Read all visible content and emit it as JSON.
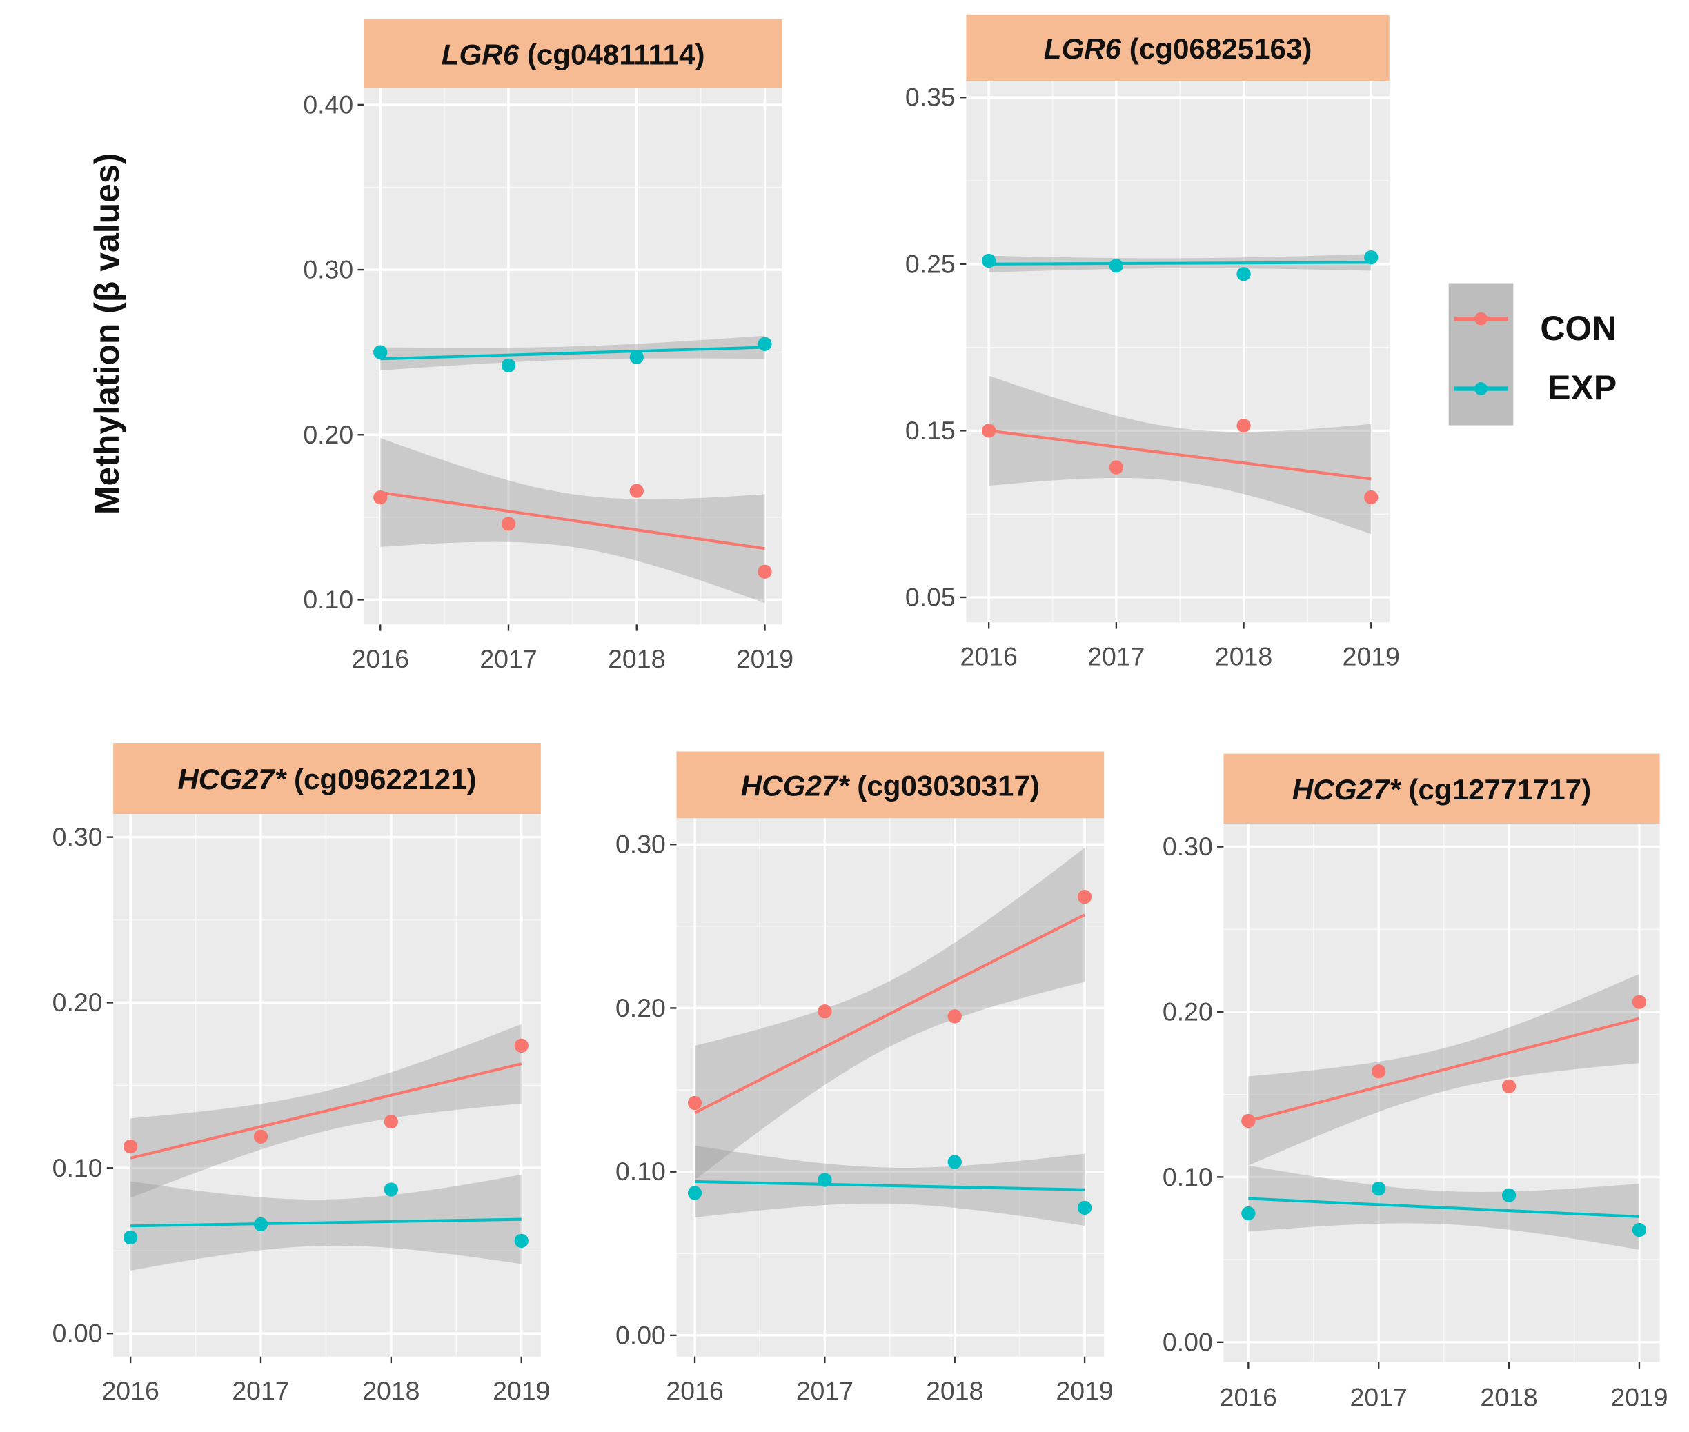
{
  "chart_data": {
    "type": "scatter",
    "ylabel": "Methylation (β values)",
    "legend": {
      "position": "right",
      "entries": [
        {
          "name": "CON",
          "color": "#F8766D"
        },
        {
          "name": "EXP",
          "color": "#00BFC4"
        }
      ]
    },
    "x_categories": [
      "2016",
      "2017",
      "2018",
      "2019"
    ],
    "x": [
      2016,
      2017,
      2018,
      2019
    ],
    "panels": [
      {
        "gene": "LGR6",
        "probe": " (cg04811114)",
        "ylim": [
          0.085,
          0.41
        ],
        "yticks": [
          0.1,
          0.2,
          0.3,
          0.4
        ],
        "ytick_labels": [
          "0.10",
          "0.20",
          "0.30",
          "0.40"
        ],
        "series": [
          {
            "name": "CON",
            "values": [
              0.162,
              0.146,
              0.166,
              0.117
            ],
            "fit": [
              0.165,
              0.131
            ],
            "ci_end": 0.033,
            "ci_center": 0.016
          },
          {
            "name": "EXP",
            "values": [
              0.25,
              0.242,
              0.247,
              0.255
            ],
            "fit": [
              0.246,
              0.253
            ],
            "ci_end": 0.007,
            "ci_center": 0.004
          }
        ]
      },
      {
        "gene": "LGR6",
        "probe": " (cg06825163)",
        "ylim": [
          0.035,
          0.36
        ],
        "yticks": [
          0.05,
          0.15,
          0.25,
          0.35
        ],
        "ytick_labels": [
          "0.05",
          "0.15",
          "0.25",
          "0.35"
        ],
        "series": [
          {
            "name": "CON",
            "values": [
              0.15,
              0.128,
              0.153,
              0.11
            ],
            "fit": [
              0.15,
              0.121
            ],
            "ci_end": 0.033,
            "ci_center": 0.016
          },
          {
            "name": "EXP",
            "values": [
              0.252,
              0.249,
              0.244,
              0.254
            ],
            "fit": [
              0.25,
              0.251
            ],
            "ci_end": 0.005,
            "ci_center": 0.003
          }
        ]
      },
      {
        "gene": "HCG27*",
        "probe": " (cg09622121)",
        "ylim": [
          -0.014,
          0.314
        ],
        "yticks": [
          0.0,
          0.1,
          0.2,
          0.3
        ],
        "ytick_labels": [
          "0.00",
          "0.10",
          "0.20",
          "0.30"
        ],
        "series": [
          {
            "name": "CON",
            "values": [
              0.113,
              0.119,
              0.128,
              0.174
            ],
            "fit": [
              0.106,
              0.163
            ],
            "ci_end": 0.024,
            "ci_center": 0.012
          },
          {
            "name": "EXP",
            "values": [
              0.058,
              0.066,
              0.087,
              0.056
            ],
            "fit": [
              0.065,
              0.069
            ],
            "ci_end": 0.027,
            "ci_center": 0.014
          }
        ]
      },
      {
        "gene": "HCG27*",
        "probe": " (cg03030317)",
        "ylim": [
          -0.013,
          0.316
        ],
        "yticks": [
          0.0,
          0.1,
          0.2,
          0.3
        ],
        "ytick_labels": [
          "0.00",
          "0.10",
          "0.20",
          "0.30"
        ],
        "series": [
          {
            "name": "CON",
            "values": [
              0.142,
              0.198,
              0.195,
              0.268
            ],
            "fit": [
              0.136,
              0.257
            ],
            "ci_end": 0.041,
            "ci_center": 0.02
          },
          {
            "name": "EXP",
            "values": [
              0.087,
              0.095,
              0.106,
              0.078
            ],
            "fit": [
              0.094,
              0.089
            ],
            "ci_end": 0.022,
            "ci_center": 0.011
          }
        ]
      },
      {
        "gene": "HCG27*",
        "probe": " (cg12771717)",
        "ylim": [
          -0.012,
          0.314
        ],
        "yticks": [
          0.0,
          0.1,
          0.2,
          0.3
        ],
        "ytick_labels": [
          "0.00",
          "0.10",
          "0.20",
          "0.30"
        ],
        "series": [
          {
            "name": "CON",
            "values": [
              0.134,
              0.164,
              0.155,
              0.206
            ],
            "fit": [
              0.134,
              0.196
            ],
            "ci_end": 0.027,
            "ci_center": 0.013
          },
          {
            "name": "EXP",
            "values": [
              0.078,
              0.093,
              0.089,
              0.068
            ],
            "fit": [
              0.087,
              0.076
            ],
            "ci_end": 0.02,
            "ci_center": 0.01
          }
        ]
      }
    ]
  }
}
